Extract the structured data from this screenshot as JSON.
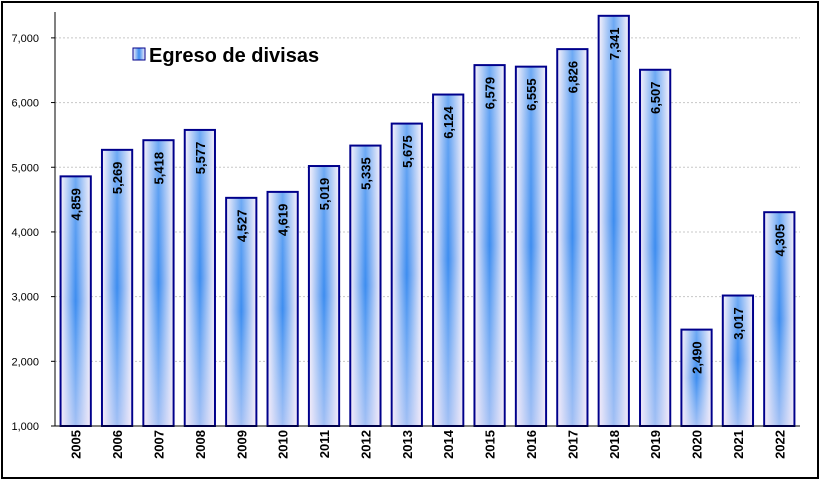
{
  "chart_data": {
    "type": "bar",
    "categories": [
      "2005",
      "2006",
      "2007",
      "2008",
      "2009",
      "2010",
      "2011",
      "2012",
      "2013",
      "2014",
      "2015",
      "2016",
      "2017",
      "2018",
      "2019",
      "2020",
      "2021",
      "2022"
    ],
    "series": [
      {
        "name": "Egreso de divisas",
        "values": [
          4859,
          5269,
          5418,
          5577,
          4527,
          4619,
          5019,
          5335,
          5675,
          6124,
          6579,
          6555,
          6826,
          7341,
          6507,
          2490,
          3017,
          4305
        ],
        "labels": [
          "4,859",
          "5,269",
          "5,418",
          "5,577",
          "4,527",
          "4,619",
          "5,019",
          "5,335",
          "5,675",
          "6,124",
          "6,579",
          "6,555",
          "6,826",
          "7,341",
          "6,507",
          "2,490",
          "3,017",
          "4,305"
        ]
      }
    ],
    "y_ticks": [
      {
        "value": 1000,
        "label": "1,000"
      },
      {
        "value": 2000,
        "label": "2,000"
      },
      {
        "value": 3000,
        "label": "3,000"
      },
      {
        "value": 4000,
        "label": "4,000"
      },
      {
        "value": 5000,
        "label": "5,000"
      },
      {
        "value": 6000,
        "label": "6,000"
      },
      {
        "value": 7000,
        "label": "7,000"
      }
    ],
    "ylim": [
      1000,
      7400
    ],
    "grid": true,
    "legend_position": "top-left",
    "colors": {
      "bar_center": "#3d8df0",
      "bar_edge": "#f3e8f8",
      "bar_border": "#00008b",
      "grid": "#c8c8c8"
    }
  }
}
